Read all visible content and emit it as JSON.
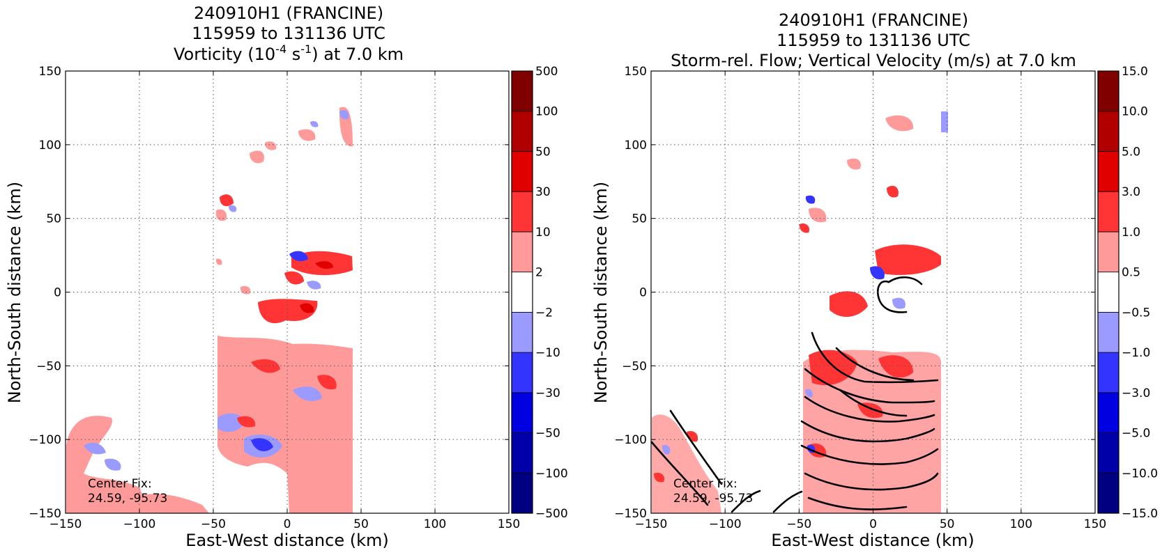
{
  "colors": {
    "neg_extreme": "#000080",
    "neg_4": "#0000a8",
    "neg_3": "#0000e0",
    "neg_2": "#3434ff",
    "neg_1": "#9a9aff",
    "neutral": "#ffffff",
    "pos_1": "#ff9a9a",
    "pos_2": "#ff3434",
    "pos_3": "#e00000",
    "pos_4": "#b00000",
    "pos_extreme": "#800000"
  },
  "chart_data": [
    {
      "type": "heatmap",
      "title_lines": [
        "240910H1 (FRANCINE)",
        "115959 to 131136 UTC"
      ],
      "title_field": "Vorticity (10",
      "title_field_exp1": "-4",
      "title_field_mid": " s",
      "title_field_exp2": "-1",
      "title_field_end": ") at 7.0 km",
      "xlabel": "East-West distance (km)",
      "ylabel": "North-South distance (km)",
      "xlim": [
        -150,
        150
      ],
      "ylim": [
        -150,
        150
      ],
      "xticks": [
        -150,
        -100,
        -50,
        0,
        50,
        100,
        150
      ],
      "yticks": [
        -150,
        -100,
        -50,
        0,
        50,
        100,
        150
      ],
      "xtick_labels": [
        "−150",
        "−100",
        "−50",
        "0",
        "50",
        "100",
        "150"
      ],
      "ytick_labels": [
        "−150",
        "−100",
        "−50",
        "0",
        "50",
        "100",
        "150"
      ],
      "grid": true,
      "colorbar_levels": [
        -500,
        -100,
        -50,
        -30,
        -10,
        -2,
        2,
        10,
        30,
        50,
        100,
        500
      ],
      "colorbar_labels": [
        "−500",
        "−100",
        "−50",
        "−30",
        "−10",
        "−2",
        "2",
        "10",
        "30",
        "50",
        "100",
        "500"
      ],
      "annotation": [
        "Center Fix:",
        "24.59, -95.73"
      ]
    },
    {
      "type": "heatmap",
      "title_lines": [
        "240910H1 (FRANCINE)",
        "115959 to 131136 UTC",
        "Storm-rel. Flow; Vertical Velocity (m/s) at 7.0 km"
      ],
      "xlabel": "East-West distance (km)",
      "ylabel": "North-South distance (km)",
      "xlim": [
        -150,
        150
      ],
      "ylim": [
        -150,
        150
      ],
      "xticks": [
        -150,
        -100,
        -50,
        0,
        50,
        100,
        150
      ],
      "yticks": [
        -150,
        -100,
        -50,
        0,
        50,
        100,
        150
      ],
      "xtick_labels": [
        "−150",
        "−100",
        "−50",
        "0",
        "50",
        "100",
        "150"
      ],
      "ytick_labels": [
        "−150",
        "−100",
        "−50",
        "0",
        "50",
        "100",
        "150"
      ],
      "grid": true,
      "colorbar_levels": [
        -15.0,
        -10.0,
        -5.0,
        -3.0,
        -1.0,
        -0.5,
        0.5,
        1.0,
        3.0,
        5.0,
        10.0,
        15.0
      ],
      "colorbar_labels": [
        "−15.0",
        "−10.0",
        "−5.0",
        "−3.0",
        "−1.0",
        "−0.5",
        "0.5",
        "1.0",
        "3.0",
        "5.0",
        "10.0",
        "15.0"
      ],
      "annotation": [
        "Center Fix:",
        "24.59, -95.73"
      ]
    }
  ]
}
